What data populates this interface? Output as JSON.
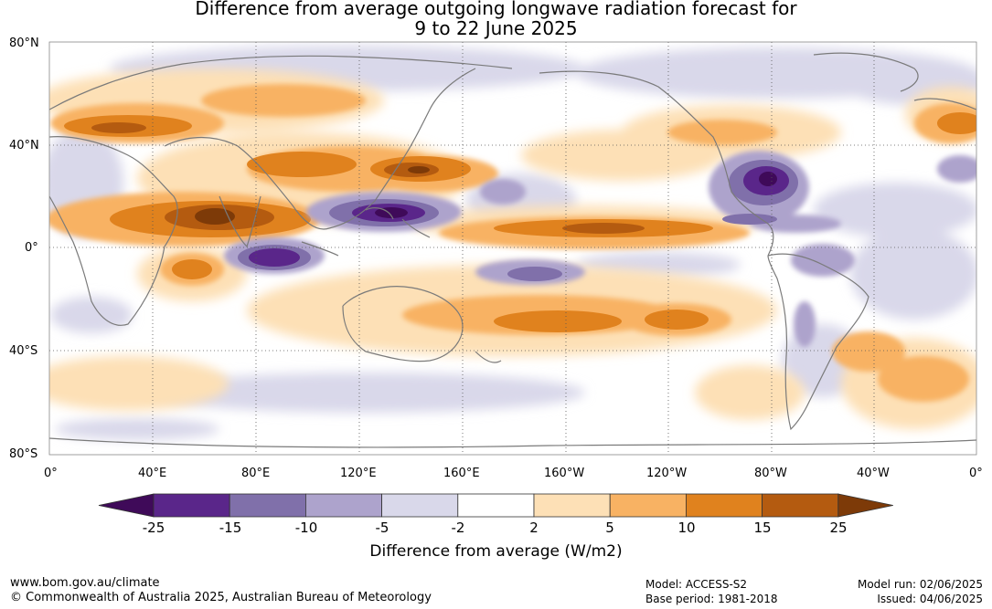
{
  "title": {
    "line1": "Difference from average outgoing longwave radiation forecast for",
    "line2": "9 to 22 June 2025"
  },
  "map": {
    "lat_labels": [
      "80°N",
      "40°N",
      "0°",
      "40°S",
      "80°S"
    ],
    "lon_labels": [
      "0°",
      "40°E",
      "80°E",
      "120°E",
      "160°E",
      "160°W",
      "120°W",
      "80°W",
      "40°W",
      "0°"
    ],
    "gridlines": true
  },
  "colorbar": {
    "title": "Difference from average (W/m2)",
    "ticks": [
      "-25",
      "-15",
      "-10",
      "-5",
      "-2",
      "2",
      "5",
      "10",
      "15",
      "25"
    ],
    "colors": [
      "#3f0a59",
      "#5a268a",
      "#8070aa",
      "#ada3cc",
      "#d9d8ea",
      "#ffffff",
      "#fde0b6",
      "#f8b263",
      "#e0821e",
      "#b45b10",
      "#7d3a08"
    ]
  },
  "footer": {
    "url": "www.bom.gov.au/climate",
    "copyright": "© Commonwealth of Australia 2025, Australian Bureau of Meteorology",
    "model": "Model: ACCESS-S2",
    "base_period": "Base period: 1981-2018",
    "model_run": "Model run: 02/06/2025",
    "issued": "Issued: 04/06/2025"
  }
}
